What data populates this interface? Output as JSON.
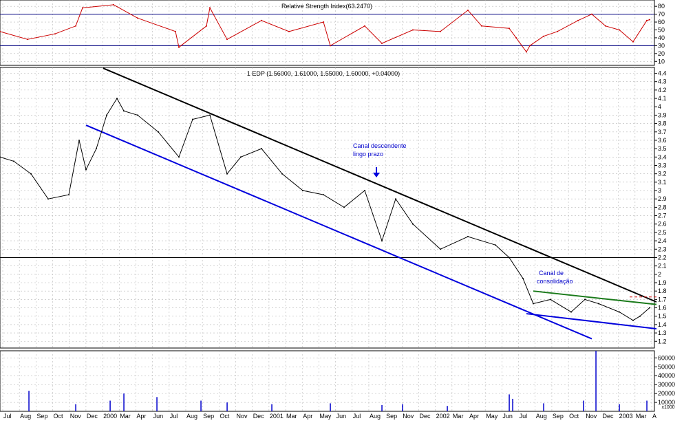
{
  "chart_data": [
    {
      "type": "line",
      "panel": "rsi",
      "title": "Relative Strength Index(63.2470)",
      "y_ticks": [
        80,
        70,
        60,
        50,
        40,
        30,
        20,
        10
      ],
      "ylim": [
        5,
        88
      ],
      "reference_lines": [
        70,
        30
      ],
      "grid": true,
      "series": [
        {
          "color": "#cc0000",
          "x": [
            0,
            40,
            80,
            110,
            120,
            165,
            200,
            255,
            260,
            300,
            305,
            330,
            380,
            420,
            470,
            480,
            530,
            555,
            600,
            640,
            680,
            700,
            740,
            750,
            765,
            770,
            790,
            810,
            840,
            860,
            880,
            900,
            920,
            940,
            944
          ],
          "values": [
            48,
            38,
            45,
            55,
            78,
            82,
            65,
            48,
            28,
            55,
            78,
            38,
            62,
            48,
            60,
            30,
            55,
            33,
            50,
            48,
            75,
            55,
            52,
            40,
            22,
            30,
            42,
            48,
            62,
            70,
            55,
            50,
            35,
            62,
            63
          ]
        }
      ]
    },
    {
      "type": "line",
      "panel": "price",
      "title": "1 EDP (1.56000, 1.61000, 1.55000, 1.60000, +0.04000)",
      "y_ticks": [
        4.4,
        4.3,
        4.2,
        4.1,
        4.0,
        3.9,
        3.8,
        3.7,
        3.6,
        3.5,
        3.4,
        3.3,
        3.2,
        3.1,
        3.0,
        2.9,
        2.8,
        2.7,
        2.6,
        2.5,
        2.4,
        2.3,
        2.2,
        2.1,
        2.0,
        1.9,
        1.8,
        1.7,
        1.6,
        1.5,
        1.4,
        1.3,
        1.2
      ],
      "ylim": [
        1.12,
        4.47
      ],
      "reference_lines": [
        2.2
      ],
      "grid": true,
      "series": [
        {
          "color": "#000000",
          "x": [
            0,
            20,
            45,
            70,
            100,
            115,
            125,
            140,
            155,
            170,
            180,
            200,
            230,
            260,
            280,
            305,
            330,
            350,
            380,
            410,
            440,
            470,
            500,
            530,
            555,
            575,
            600,
            640,
            680,
            720,
            740,
            760,
            775,
            800,
            830,
            850,
            870,
            900,
            920,
            930,
            944
          ],
          "values": [
            3.4,
            3.35,
            3.2,
            2.9,
            2.95,
            3.6,
            3.25,
            3.5,
            3.9,
            4.1,
            3.95,
            3.9,
            3.7,
            3.4,
            3.85,
            3.9,
            3.2,
            3.4,
            3.5,
            3.2,
            3.0,
            2.95,
            2.8,
            3.0,
            2.4,
            2.9,
            2.6,
            2.3,
            2.45,
            2.35,
            2.2,
            1.95,
            1.65,
            1.7,
            1.55,
            1.7,
            1.65,
            1.55,
            1.45,
            1.5,
            1.6
          ]
        }
      ],
      "trendlines": [
        {
          "color": "#000000",
          "x": [
            150,
            954
          ],
          "values": [
            4.46,
            1.67
          ]
        },
        {
          "color": "#0000dd",
          "x": [
            125,
            860
          ],
          "values": [
            3.78,
            1.23
          ]
        },
        {
          "color": "#0000dd",
          "x": [
            765,
            954
          ],
          "values": [
            1.53,
            1.35
          ]
        },
        {
          "color": "#1a7a1a",
          "x": [
            775,
            954
          ],
          "values": [
            1.8,
            1.64
          ]
        },
        {
          "color": "#cc0000",
          "x": [
            915,
            954
          ],
          "values": [
            1.73,
            1.73
          ]
        }
      ],
      "annotations": [
        {
          "text": "Canal descendente",
          "color": "#0000cc"
        },
        {
          "text": "lingo prazo",
          "color": "#0000cc"
        },
        {
          "text": "Canal de",
          "color": "#0000cc"
        },
        {
          "text": "consolidação",
          "color": "#0000cc"
        }
      ]
    },
    {
      "type": "bar",
      "panel": "volume",
      "y_ticks": [
        60000,
        50000,
        40000,
        30000,
        20000,
        10000
      ],
      "y_unit_label": "x1000",
      "ylim": [
        0,
        68000
      ],
      "grid": true,
      "series": [
        {
          "color": "#0000cc",
          "x": [
            42,
            110,
            160,
            180,
            228,
            292,
            330,
            395,
            480,
            555,
            585,
            650,
            740,
            745,
            790,
            848,
            866,
            900,
            940
          ],
          "values": [
            23000,
            8000,
            12000,
            20000,
            16000,
            12000,
            10000,
            8000,
            9000,
            7000,
            8000,
            6000,
            19000,
            14000,
            9000,
            12000,
            68000,
            8000,
            12000
          ]
        }
      ]
    }
  ],
  "x_axis": {
    "labels": [
      "Jul",
      "Aug",
      "Sep",
      "Oct",
      "Nov",
      "Dec",
      "2000",
      "Mar",
      "Apr",
      "Jun",
      "Jul",
      "Aug",
      "Sep",
      "Oct",
      "Nov",
      "Dec",
      "2001",
      "Mar",
      "Apr",
      "May",
      "Jun",
      "Jul",
      "Aug",
      "Sep",
      "Nov",
      "Dec",
      "2002",
      "Mar",
      "Apr",
      "May",
      "Jun",
      "Jul",
      "Aug",
      "Sep",
      "Oct",
      "Nov",
      "Dec",
      "2003",
      "Mar",
      "A"
    ]
  },
  "colors": {
    "rsi_line": "#cc0000",
    "reference_line": "#000080",
    "price_line": "#000000",
    "grid": "#b8b8b8"
  }
}
